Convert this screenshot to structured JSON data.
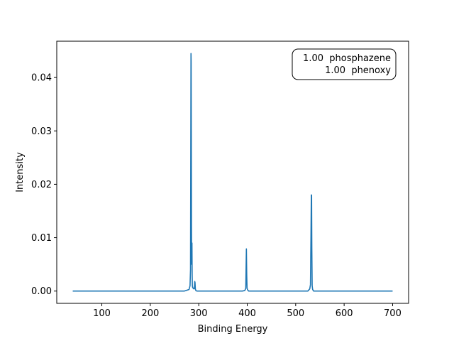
{
  "chart_data": {
    "type": "line",
    "title": "",
    "xlabel": "Binding Energy",
    "ylabel": "Intensity",
    "xlim": [
      7,
      733
    ],
    "ylim": [
      -0.0023,
      0.0468
    ],
    "x_ticks": [
      100,
      200,
      300,
      400,
      500,
      600,
      700
    ],
    "x_tick_labels": [
      "100",
      "200",
      "300",
      "400",
      "500",
      "600",
      "700"
    ],
    "y_ticks": [
      0.0,
      0.01,
      0.02,
      0.03,
      0.04
    ],
    "y_tick_labels": [
      "0.00",
      "0.01",
      "0.02",
      "0.03",
      "0.04"
    ],
    "grid": false,
    "legend": {
      "placement": "top-right",
      "lines": [
        "1.00  phosphazene",
        "1.00  phenoxy"
      ]
    },
    "series": [
      {
        "color": "#1f77b4",
        "x": [
          40,
          100,
          200,
          270,
          280,
          282,
          283,
          284.0,
          284.3,
          284.6,
          285.0,
          285.4,
          285.7,
          286.0,
          286.4,
          286.8,
          287.2,
          287.6,
          288.2,
          289,
          290,
          291,
          291.7,
          292.3,
          293,
          294,
          296,
          300,
          350,
          390,
          395,
          397,
          398.3,
          399.0,
          399.7,
          401,
          403,
          410,
          500,
          525,
          529,
          530.5,
          531.5,
          532.3,
          532.8,
          533.3,
          534.0,
          535,
          537,
          545,
          600,
          700
        ],
        "y": [
          0.0,
          0.0,
          0.0,
          0.0,
          0.0003,
          0.001,
          0.004,
          0.0445,
          0.043,
          0.03,
          0.012,
          0.005,
          0.0085,
          0.009,
          0.003,
          0.001,
          0.0008,
          0.0006,
          0.0006,
          0.0005,
          0.0004,
          0.0005,
          0.0018,
          0.0016,
          0.0004,
          0.0001,
          0.0,
          0.0,
          0.0,
          0.0,
          0.0001,
          0.0005,
          0.0079,
          0.003,
          0.0005,
          0.0002,
          0.0,
          0.0,
          0.0,
          0.0,
          0.0004,
          0.0012,
          0.01,
          0.018,
          0.018,
          0.008,
          0.001,
          0.0003,
          0.0,
          0.0,
          0.0,
          0.0
        ]
      }
    ]
  }
}
